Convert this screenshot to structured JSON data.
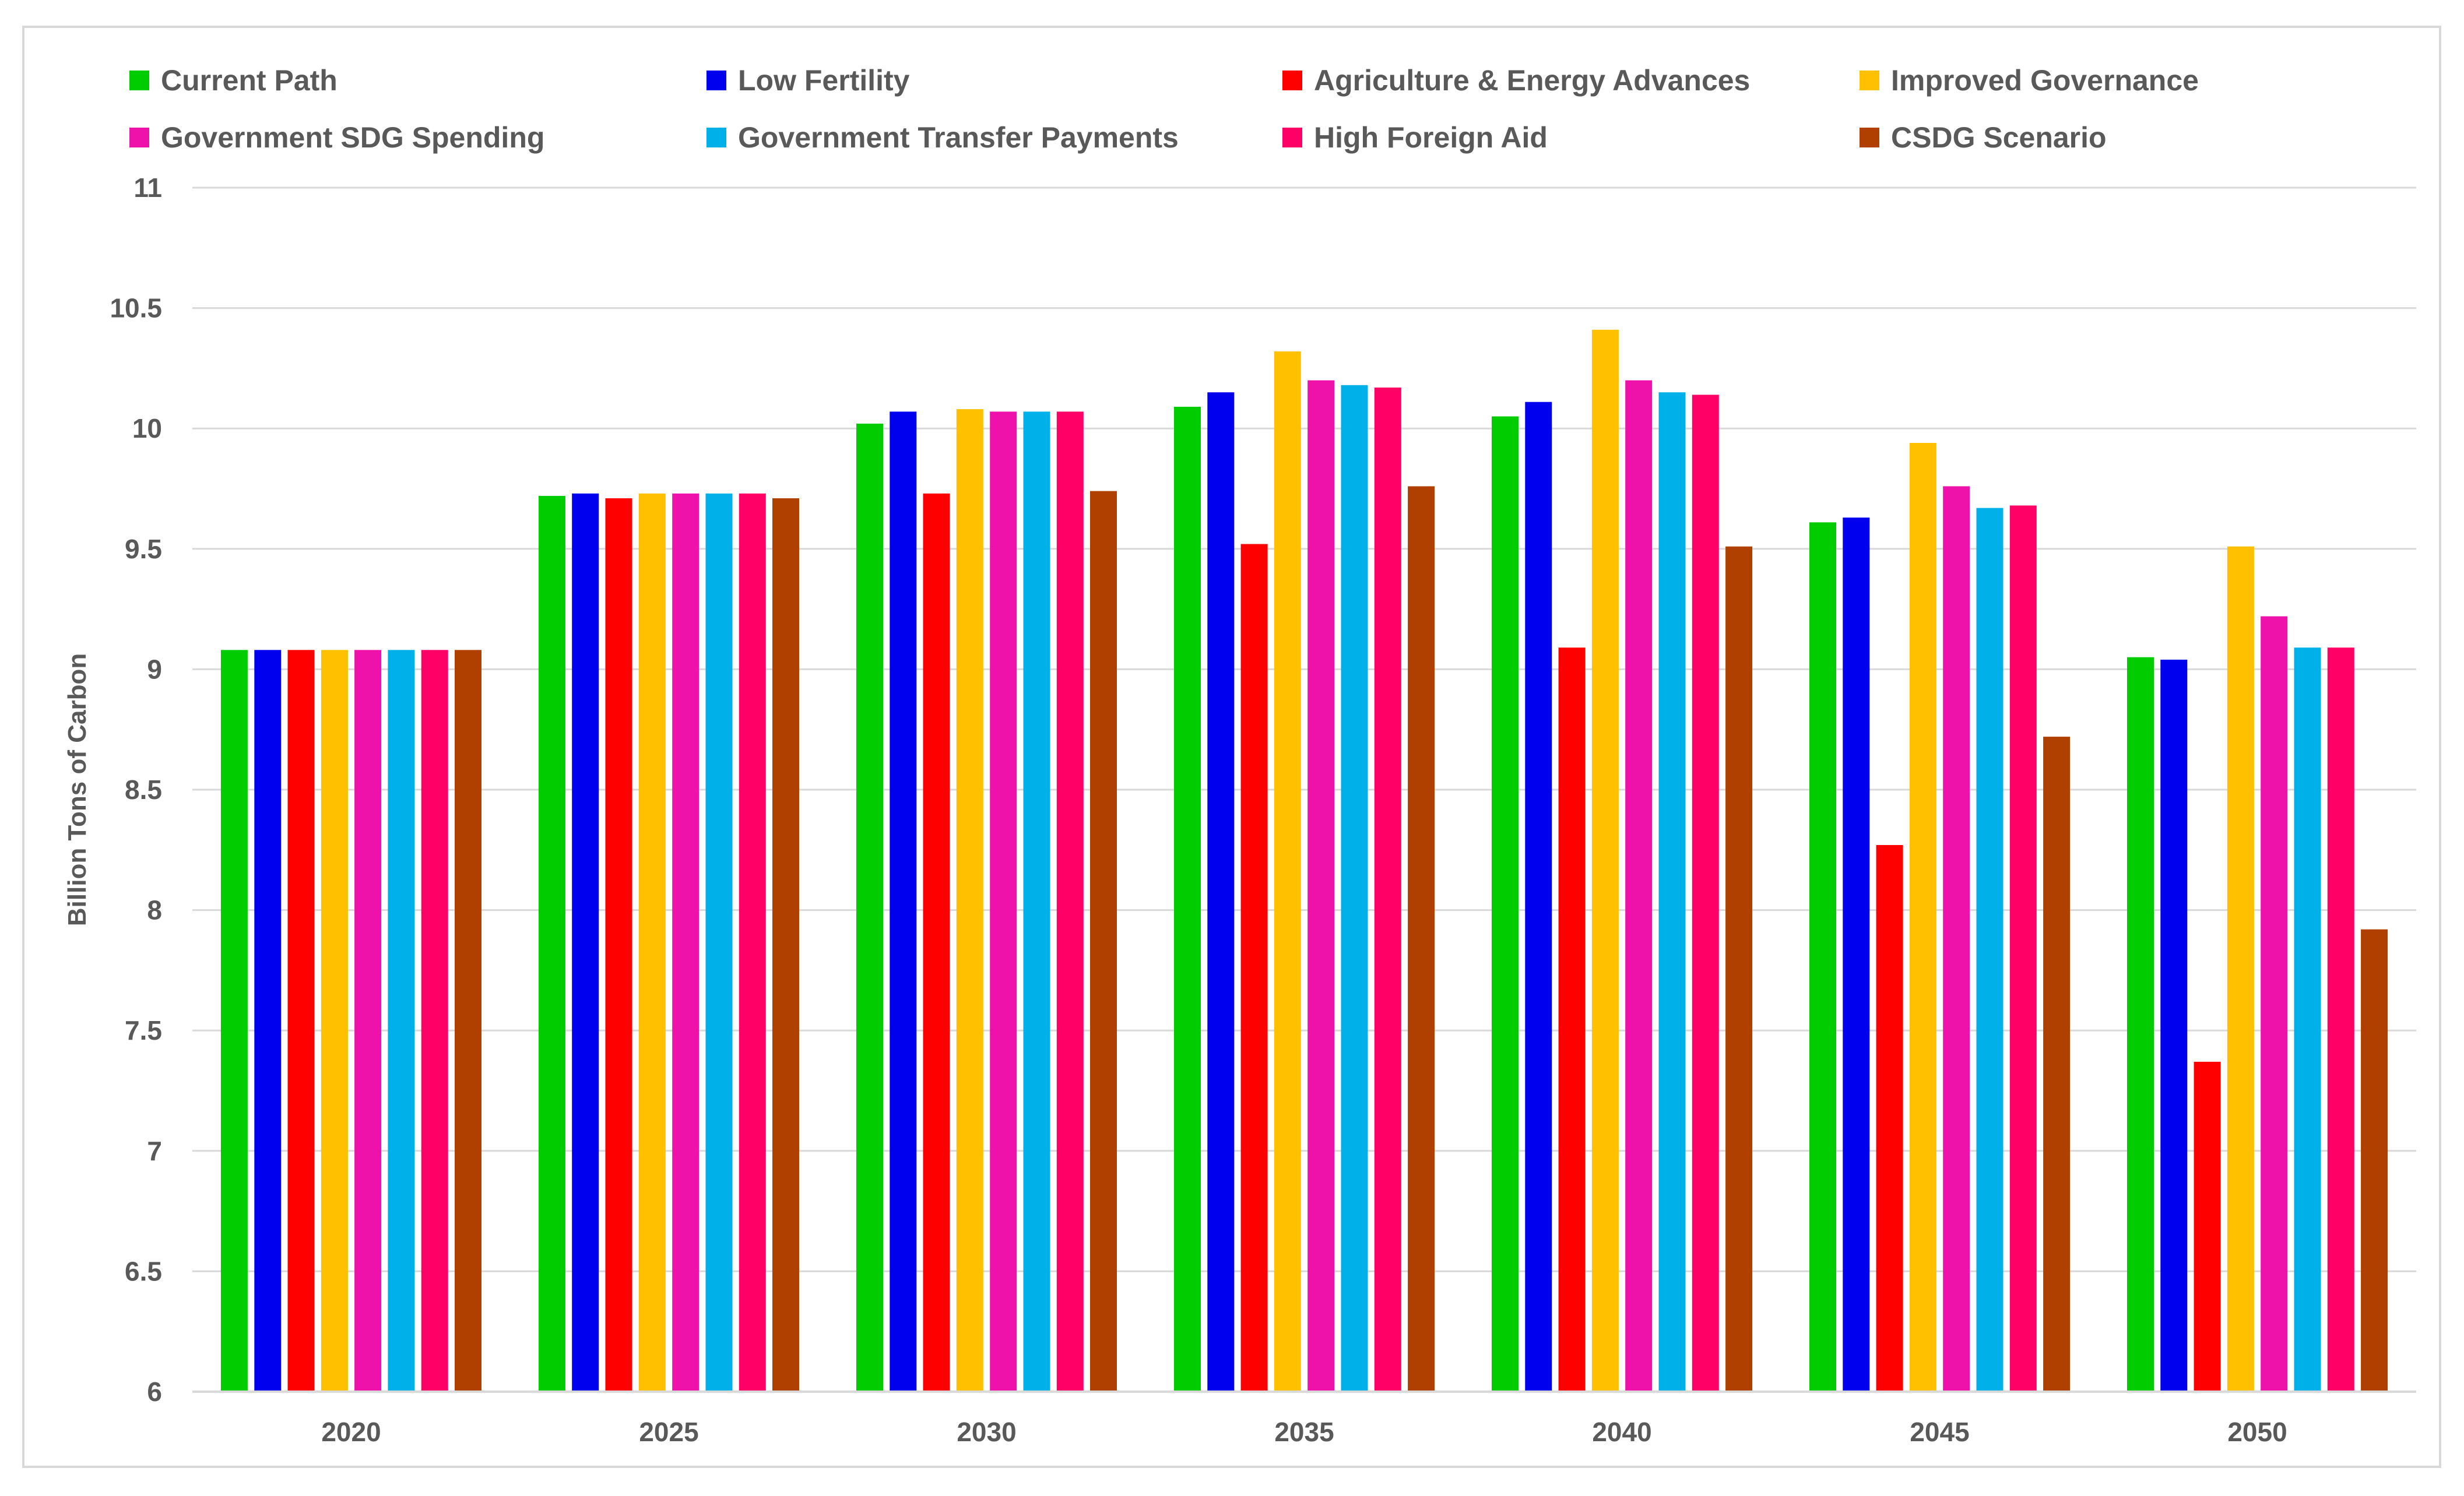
{
  "chart_data": {
    "type": "bar",
    "title": "",
    "xlabel": "",
    "ylabel": "Billion Tons of Carbon",
    "ylim": [
      6,
      11
    ],
    "yticks": [
      6,
      6.5,
      7,
      7.5,
      8,
      8.5,
      9,
      9.5,
      10,
      10.5,
      11
    ],
    "ytick_labels": [
      "6",
      "6.5",
      "7",
      "7.5",
      "8",
      "8.5",
      "9",
      "9.5",
      "10",
      "10.5",
      "11"
    ],
    "grid": true,
    "legend_position": "top",
    "categories": [
      "2020",
      "2025",
      "2030",
      "2035",
      "2040",
      "2045",
      "2050"
    ],
    "series": [
      {
        "name": "Current Path",
        "color": "#00cc00",
        "values": [
          9.08,
          9.72,
          10.02,
          10.09,
          10.05,
          9.61,
          9.05
        ]
      },
      {
        "name": "Low Fertility",
        "color": "#0000ee",
        "values": [
          9.08,
          9.73,
          10.07,
          10.15,
          10.11,
          9.63,
          9.04
        ]
      },
      {
        "name": "Agriculture & Energy Advances",
        "color": "#ff0000",
        "values": [
          9.08,
          9.71,
          9.73,
          9.52,
          9.09,
          8.27,
          7.37
        ]
      },
      {
        "name": "Improved Governance",
        "color": "#ffc000",
        "values": [
          9.08,
          9.73,
          10.08,
          10.32,
          10.41,
          9.94,
          9.51
        ]
      },
      {
        "name": "Government SDG Spending",
        "color": "#ee11aa",
        "values": [
          9.08,
          9.73,
          10.07,
          10.2,
          10.2,
          9.76,
          9.22
        ]
      },
      {
        "name": "Government Transfer Payments",
        "color": "#00b0e8",
        "values": [
          9.08,
          9.73,
          10.07,
          10.18,
          10.15,
          9.67,
          9.09
        ]
      },
      {
        "name": "High Foreign Aid",
        "color": "#ff0066",
        "values": [
          9.08,
          9.73,
          10.07,
          10.17,
          10.14,
          9.68,
          9.09
        ]
      },
      {
        "name": "CSDG Scenario",
        "color": "#b04000",
        "values": [
          9.08,
          9.71,
          9.74,
          9.76,
          9.51,
          8.72,
          7.92
        ]
      }
    ]
  }
}
